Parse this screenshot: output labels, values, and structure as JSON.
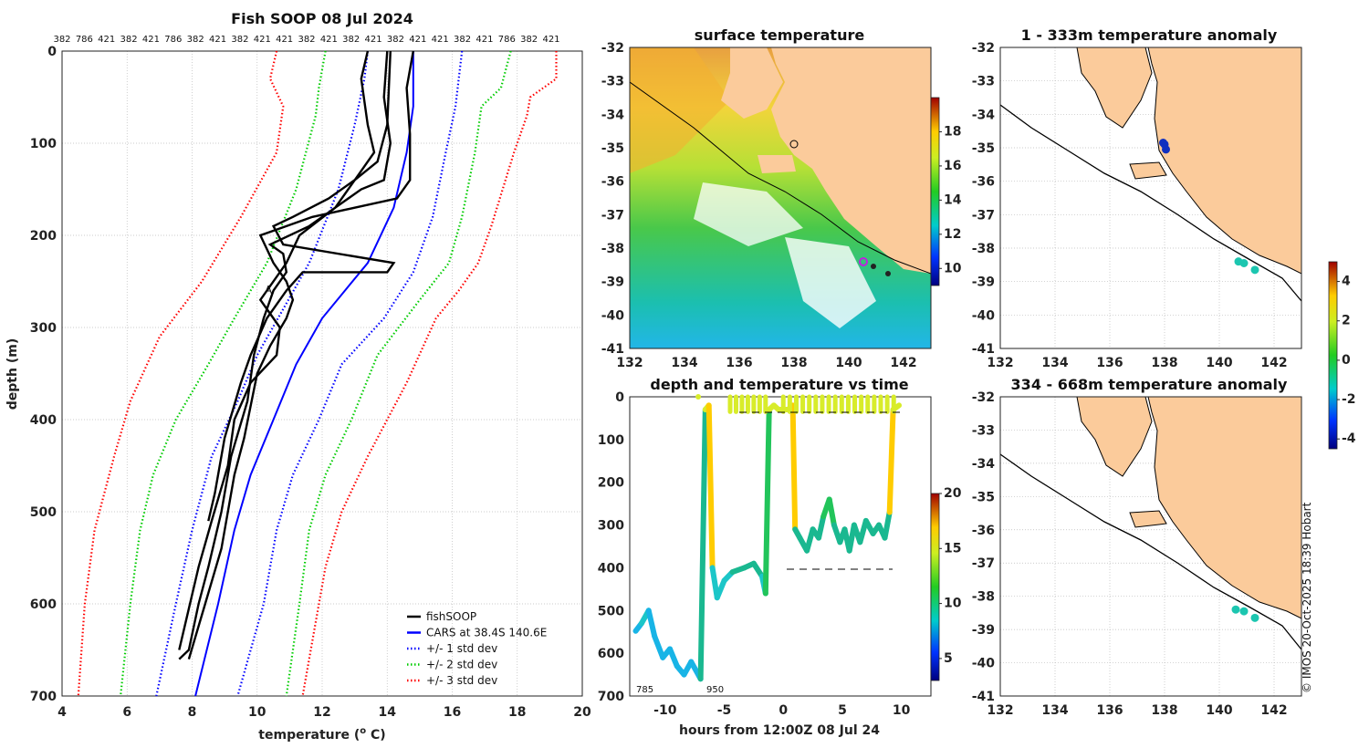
{
  "chart_data": [
    {
      "type": "line",
      "title": "Fish SOOP 08 Jul 2024",
      "xlabel": "temperature (",
      "xlabel_sup": "o",
      "xlabel_end": " C)",
      "ylabel": "depth (m)",
      "xlim": [
        4,
        20
      ],
      "ylim": [
        0,
        700
      ],
      "xticks": [
        4,
        6,
        8,
        10,
        12,
        14,
        16,
        18,
        20
      ],
      "yticks": [
        0,
        100,
        200,
        300,
        400,
        500,
        600,
        700
      ],
      "top_labels": [
        "382",
        "786",
        "421",
        "382",
        "421",
        "786",
        "382",
        "421",
        "382",
        "421",
        "421",
        "382",
        "421",
        "382",
        "421",
        "382",
        "421",
        "421",
        "382",
        "421",
        "786",
        "382",
        "421"
      ],
      "legend": [
        "fishSOOP",
        "CARS at 38.4S 140.6E",
        "+/- 1 std dev",
        "+/- 2 std dev",
        "+/- 3 std dev"
      ],
      "series": [
        {
          "name": "CARS mean",
          "color": "#0000ff",
          "style": "solid",
          "points": [
            [
              14.8,
              0
            ],
            [
              14.8,
              60
            ],
            [
              14.6,
              110
            ],
            [
              14.2,
              170
            ],
            [
              13.4,
              230
            ],
            [
              12.7,
              260
            ],
            [
              12.0,
              290
            ],
            [
              11.2,
              340
            ],
            [
              10.5,
              400
            ],
            [
              9.8,
              460
            ],
            [
              9.3,
              520
            ],
            [
              8.8,
              600
            ],
            [
              8.1,
              700
            ]
          ]
        },
        {
          "name": "-1 std",
          "color": "#0000ff",
          "style": "dotted",
          "points": [
            [
              13.4,
              0
            ],
            [
              13.3,
              30
            ],
            [
              13.0,
              80
            ],
            [
              12.5,
              150
            ],
            [
              11.6,
              230
            ],
            [
              10.8,
              280
            ],
            [
              10.0,
              330
            ],
            [
              9.4,
              380
            ],
            [
              8.6,
              440
            ],
            [
              8.0,
              520
            ],
            [
              7.5,
              600
            ],
            [
              6.9,
              700
            ]
          ]
        },
        {
          "name": "+1 std",
          "color": "#0000ff",
          "style": "dotted",
          "points": [
            [
              16.3,
              0
            ],
            [
              16.1,
              60
            ],
            [
              15.8,
              110
            ],
            [
              15.4,
              180
            ],
            [
              14.8,
              240
            ],
            [
              13.9,
              290
            ],
            [
              12.6,
              340
            ],
            [
              11.9,
              400
            ],
            [
              11.1,
              460
            ],
            [
              10.6,
              520
            ],
            [
              10.2,
              600
            ],
            [
              9.4,
              700
            ]
          ]
        },
        {
          "name": "-2 std",
          "color": "#00cc00",
          "style": "dotted",
          "points": [
            [
              12.1,
              0
            ],
            [
              11.9,
              40
            ],
            [
              11.8,
              70
            ],
            [
              11.2,
              150
            ],
            [
              10.3,
              230
            ],
            [
              9.3,
              290
            ],
            [
              8.5,
              340
            ],
            [
              7.5,
              400
            ],
            [
              6.8,
              460
            ],
            [
              6.4,
              520
            ],
            [
              6.1,
              600
            ],
            [
              5.8,
              700
            ]
          ]
        },
        {
          "name": "+2 std",
          "color": "#00cc00",
          "style": "dotted",
          "points": [
            [
              17.8,
              0
            ],
            [
              17.5,
              40
            ],
            [
              16.9,
              60
            ],
            [
              16.7,
              110
            ],
            [
              16.3,
              180
            ],
            [
              15.9,
              230
            ],
            [
              15.0,
              270
            ],
            [
              13.7,
              330
            ],
            [
              12.9,
              400
            ],
            [
              12.1,
              460
            ],
            [
              11.6,
              520
            ],
            [
              11.3,
              600
            ],
            [
              10.9,
              700
            ]
          ]
        },
        {
          "name": "-3 std",
          "color": "#ff0000",
          "style": "dotted",
          "points": [
            [
              10.6,
              0
            ],
            [
              10.4,
              30
            ],
            [
              10.8,
              60
            ],
            [
              10.6,
              110
            ],
            [
              9.5,
              180
            ],
            [
              8.3,
              250
            ],
            [
              7.0,
              310
            ],
            [
              6.1,
              380
            ],
            [
              5.6,
              440
            ],
            [
              5.0,
              520
            ],
            [
              4.7,
              600
            ],
            [
              4.5,
              700
            ]
          ]
        },
        {
          "name": "+3 std",
          "color": "#ff0000",
          "style": "dotted",
          "points": [
            [
              19.2,
              0
            ],
            [
              19.2,
              30
            ],
            [
              18.4,
              50
            ],
            [
              18.3,
              70
            ],
            [
              17.9,
              110
            ],
            [
              17.2,
              190
            ],
            [
              16.8,
              230
            ],
            [
              16.2,
              260
            ],
            [
              15.5,
              290
            ],
            [
              14.6,
              360
            ],
            [
              13.4,
              440
            ],
            [
              12.6,
              500
            ],
            [
              12.1,
              560
            ],
            [
              11.7,
              640
            ],
            [
              11.4,
              700
            ]
          ]
        },
        {
          "name": "fishSOOP A",
          "color": "#000000",
          "style": "solid",
          "points": [
            [
              13.4,
              0
            ],
            [
              13.2,
              30
            ],
            [
              13.4,
              80
            ],
            [
              13.6,
              110
            ],
            [
              13.2,
              130
            ],
            [
              12.4,
              170
            ],
            [
              11.6,
              190
            ],
            [
              10.4,
              210
            ],
            [
              10.8,
              220
            ],
            [
              10.9,
              240
            ],
            [
              10.5,
              260
            ],
            [
              10.2,
              290
            ],
            [
              9.9,
              330
            ],
            [
              9.7,
              380
            ],
            [
              9.2,
              440
            ],
            [
              8.9,
              500
            ],
            [
              8.5,
              560
            ],
            [
              8.2,
              600
            ],
            [
              7.9,
              650
            ],
            [
              7.6,
              660
            ]
          ]
        },
        {
          "name": "fishSOOP B",
          "color": "#000000",
          "style": "solid",
          "points": [
            [
              14.8,
              0
            ],
            [
              14.6,
              40
            ],
            [
              14.7,
              90
            ],
            [
              14.7,
              140
            ],
            [
              14.3,
              160
            ],
            [
              13.0,
              170
            ],
            [
              11.7,
              180
            ],
            [
              10.1,
              200
            ],
            [
              10.5,
              230
            ],
            [
              10.9,
              250
            ],
            [
              11.1,
              270
            ],
            [
              10.9,
              290
            ],
            [
              10.4,
              320
            ],
            [
              10.0,
              350
            ],
            [
              9.6,
              420
            ],
            [
              9.3,
              460
            ],
            [
              8.9,
              540
            ],
            [
              8.4,
              600
            ],
            [
              7.9,
              660
            ]
          ]
        },
        {
          "name": "fishSOOP C",
          "color": "#000000",
          "style": "solid",
          "points": [
            [
              14.0,
              0
            ],
            [
              13.9,
              50
            ],
            [
              14.1,
              100
            ],
            [
              13.9,
              140
            ],
            [
              13.2,
              150
            ],
            [
              12.4,
              170
            ],
            [
              11.3,
              200
            ],
            [
              10.9,
              230
            ],
            [
              10.1,
              270
            ],
            [
              10.7,
              300
            ],
            [
              10.6,
              330
            ],
            [
              9.8,
              360
            ],
            [
              9.3,
              400
            ],
            [
              9.1,
              450
            ],
            [
              8.6,
              510
            ],
            [
              8.2,
              560
            ],
            [
              7.8,
              620
            ],
            [
              7.6,
              650
            ]
          ]
        },
        {
          "name": "fishSOOP D",
          "color": "#000000",
          "style": "solid",
          "points": [
            [
              14.1,
              0
            ],
            [
              14.0,
              80
            ],
            [
              13.7,
              120
            ],
            [
              13.0,
              140
            ],
            [
              12.2,
              160
            ],
            [
              11.1,
              180
            ],
            [
              10.5,
              190
            ],
            [
              10.8,
              210
            ],
            [
              14.2,
              230
            ],
            [
              14.0,
              240
            ],
            [
              11.4,
              240
            ],
            [
              10.9,
              260
            ],
            [
              10.3,
              290
            ],
            [
              9.8,
              330
            ],
            [
              9.5,
              360
            ],
            [
              9.0,
              420
            ],
            [
              8.7,
              480
            ],
            [
              8.5,
              510
            ]
          ]
        }
      ]
    },
    {
      "type": "heatmap",
      "title": "surface temperature",
      "xlim": [
        132,
        143
      ],
      "ylim": [
        -41,
        -32
      ],
      "xticks": [
        132,
        134,
        136,
        138,
        140,
        142
      ],
      "yticks": [
        -32,
        -33,
        -34,
        -35,
        -36,
        -37,
        -38,
        -39,
        -40,
        -41
      ],
      "colorbar": {
        "ticks": [
          10,
          12,
          14,
          16,
          18
        ],
        "range": [
          9,
          20
        ]
      }
    },
    {
      "type": "scatter",
      "title": "depth and temperature vs time",
      "xlabel": "hours from 12:00Z 08 Jul 24",
      "xlim": [
        -13,
        12.5
      ],
      "ylim": [
        0,
        700
      ],
      "xticks": [
        -10,
        -5,
        0,
        5,
        10
      ],
      "yticks": [
        0,
        100,
        200,
        300,
        400,
        500,
        600,
        700
      ],
      "annotations": [
        "785",
        "950"
      ],
      "colorbar": {
        "ticks": [
          5,
          10,
          15,
          20
        ],
        "range": [
          3,
          20
        ]
      },
      "track": [
        [
          -12.5,
          548
        ],
        [
          -12,
          530
        ],
        [
          -11.4,
          500
        ],
        [
          -10.9,
          560
        ],
        [
          -10.2,
          610
        ],
        [
          -9.6,
          590
        ],
        [
          -9.0,
          630
        ],
        [
          -8.4,
          650
        ],
        [
          -7.8,
          620
        ],
        [
          -7.0,
          660
        ],
        [
          -6.6,
          30
        ],
        [
          -6.3,
          20
        ],
        [
          -6.0,
          400
        ],
        [
          -5.6,
          470
        ],
        [
          -5.0,
          430
        ],
        [
          -4.3,
          410
        ],
        [
          -3.3,
          400
        ],
        [
          -2.5,
          390
        ],
        [
          -1.8,
          420
        ],
        [
          -1.5,
          460
        ],
        [
          -1.2,
          30
        ],
        [
          -0.8,
          20
        ],
        [
          -0.4,
          30
        ],
        [
          0.4,
          30
        ],
        [
          0.8,
          20
        ],
        [
          1.0,
          310
        ],
        [
          1.4,
          330
        ],
        [
          2.0,
          360
        ],
        [
          2.5,
          310
        ],
        [
          3.0,
          330
        ],
        [
          3.4,
          280
        ],
        [
          3.9,
          240
        ],
        [
          4.3,
          300
        ],
        [
          4.8,
          340
        ],
        [
          5.2,
          310
        ],
        [
          5.6,
          360
        ],
        [
          6.0,
          300
        ],
        [
          6.5,
          340
        ],
        [
          7.0,
          290
        ],
        [
          7.6,
          320
        ],
        [
          8.1,
          300
        ],
        [
          8.6,
          330
        ],
        [
          9.0,
          270
        ],
        [
          9.3,
          30
        ],
        [
          9.8,
          20
        ]
      ]
    },
    {
      "type": "heatmap",
      "title": "1 - 333m temperature anomaly",
      "xlim": [
        132,
        143
      ],
      "ylim": [
        -41,
        -32
      ],
      "xticks": [
        132,
        134,
        136,
        138,
        140,
        142
      ],
      "yticks": [
        -32,
        -33,
        -34,
        -35,
        -36,
        -37,
        -38,
        -39,
        -40,
        -41
      ],
      "colorbar": {
        "ticks": [
          4,
          2,
          0,
          -2,
          -4
        ],
        "range": [
          -4.5,
          5
        ]
      },
      "points": [
        [
          138.0,
          -34.9,
          -3.5
        ],
        [
          138.05,
          -35.05,
          -3.4
        ],
        [
          137.95,
          -34.85,
          -3.2
        ],
        [
          140.7,
          -38.4,
          -1.2
        ],
        [
          140.9,
          -38.45,
          -1.1
        ],
        [
          141.3,
          -38.65,
          -1.0
        ]
      ]
    },
    {
      "type": "heatmap",
      "title": "334 - 668m temperature anomaly",
      "xlim": [
        132,
        143
      ],
      "ylim": [
        -41,
        -32
      ],
      "xticks": [
        132,
        134,
        136,
        138,
        140,
        142
      ],
      "yticks": [
        -32,
        -33,
        -34,
        -35,
        -36,
        -37,
        -38,
        -39,
        -40,
        -41
      ],
      "points": [
        [
          140.6,
          -38.4,
          -1.2
        ],
        [
          140.9,
          -38.45,
          -1.1
        ],
        [
          141.3,
          -38.65,
          -1.0
        ]
      ]
    }
  ],
  "footer": {
    "credit": "© IMOS 20-Oct-2025 18:39 Hobart"
  },
  "colors": {
    "land": "#fbcb9b",
    "coast": "#000000"
  }
}
